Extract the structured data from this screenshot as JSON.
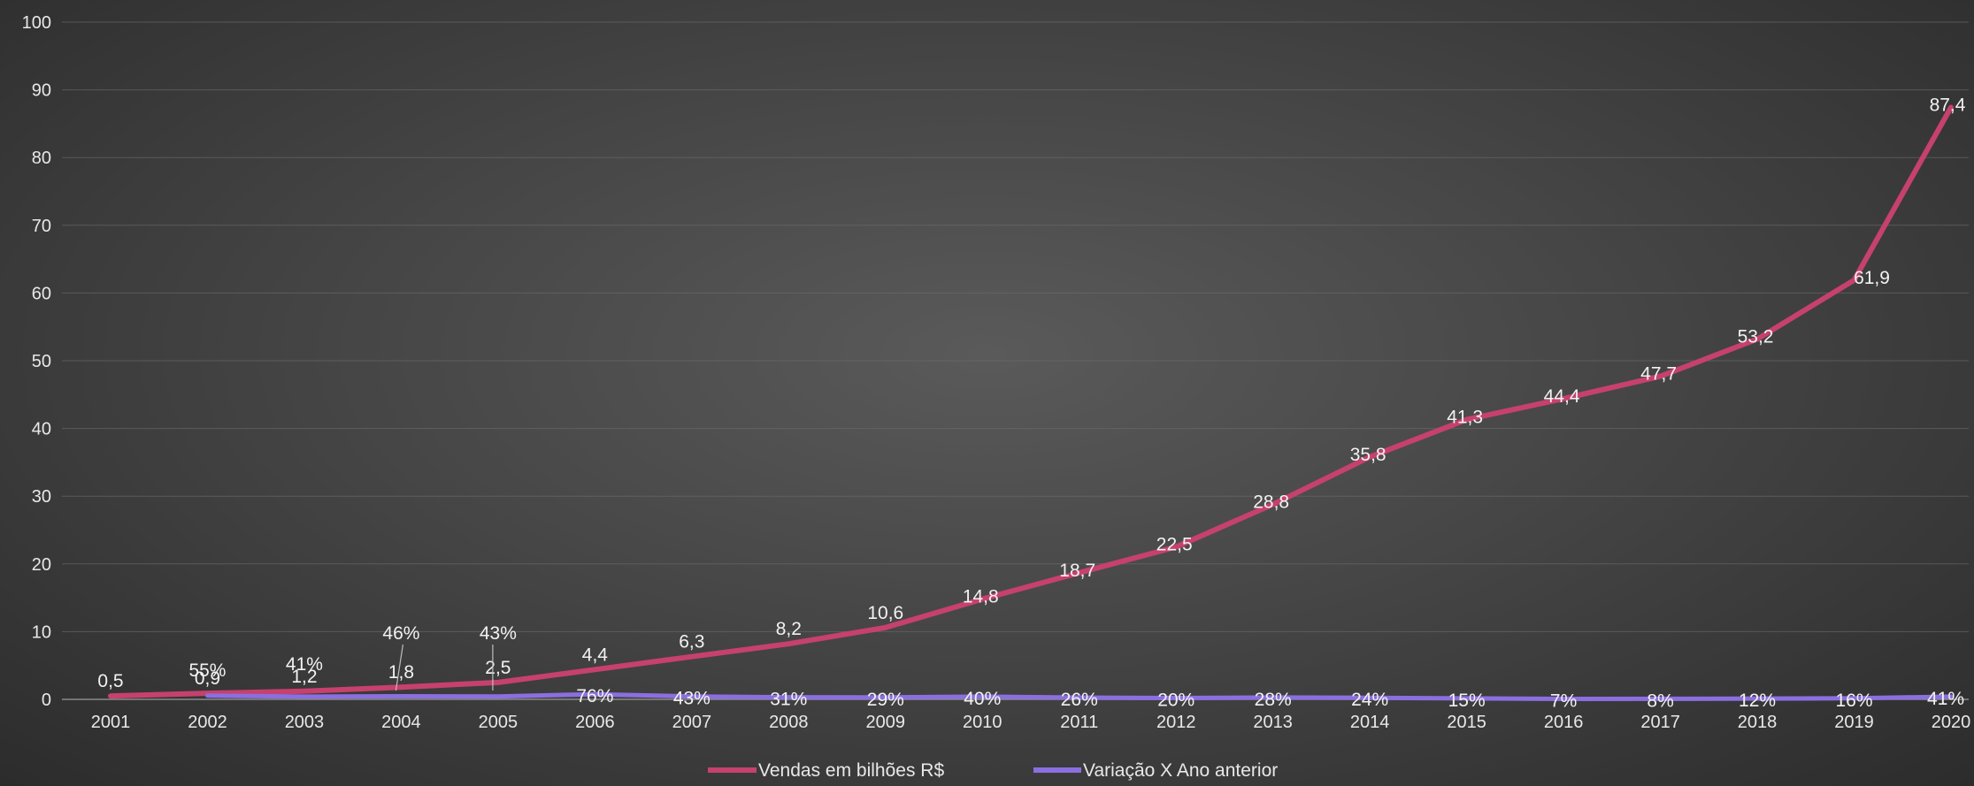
{
  "chart_data": {
    "type": "line",
    "categories": [
      "2001",
      "2002",
      "2003",
      "2004",
      "2005",
      "2006",
      "2007",
      "2008",
      "2009",
      "2010",
      "2011",
      "2012",
      "2013",
      "2014",
      "2015",
      "2016",
      "2017",
      "2018",
      "2019",
      "2020"
    ],
    "series": [
      {
        "name": "Vendas em bilhões R$",
        "color": "#c6416d",
        "values": [
          0.5,
          0.9,
          1.2,
          1.8,
          2.5,
          4.4,
          6.3,
          8.2,
          10.6,
          14.8,
          18.7,
          22.5,
          28.8,
          35.8,
          41.3,
          44.4,
          47.7,
          53.2,
          61.9,
          87.4
        ],
        "labels": [
          "0,5",
          "0,9",
          "1,2",
          "1,8",
          "2,5",
          "4,4",
          "6,3",
          "8,2",
          "10,6",
          "14,8",
          "18,7",
          "22,5",
          "28,8",
          "35,8",
          "41,3",
          "44,4",
          "47,7",
          "53,2",
          "61,9",
          "87,4"
        ]
      },
      {
        "name": "Variação X Ano anterior",
        "color": "#8b6fe0",
        "values": [
          null,
          0.55,
          0.41,
          0.46,
          0.43,
          0.76,
          0.43,
          0.31,
          0.29,
          0.4,
          0.26,
          0.2,
          0.28,
          0.24,
          0.15,
          0.07,
          0.08,
          0.12,
          0.16,
          0.41
        ],
        "labels": [
          "",
          "55%",
          "41%",
          "46%",
          "43%",
          "76%",
          "43%",
          "31%",
          "29%",
          "40%",
          "26%",
          "20%",
          "28%",
          "24%",
          "15%",
          "7%",
          "8%",
          "12%",
          "16%",
          "41%"
        ]
      }
    ],
    "ylim": [
      0,
      100
    ],
    "yticks": [
      "0",
      "10",
      "20",
      "30",
      "40",
      "50",
      "60",
      "70",
      "80",
      "90",
      "100"
    ],
    "grid": true,
    "legend_position": "bottom",
    "title": "",
    "xlabel": "",
    "ylabel": ""
  }
}
